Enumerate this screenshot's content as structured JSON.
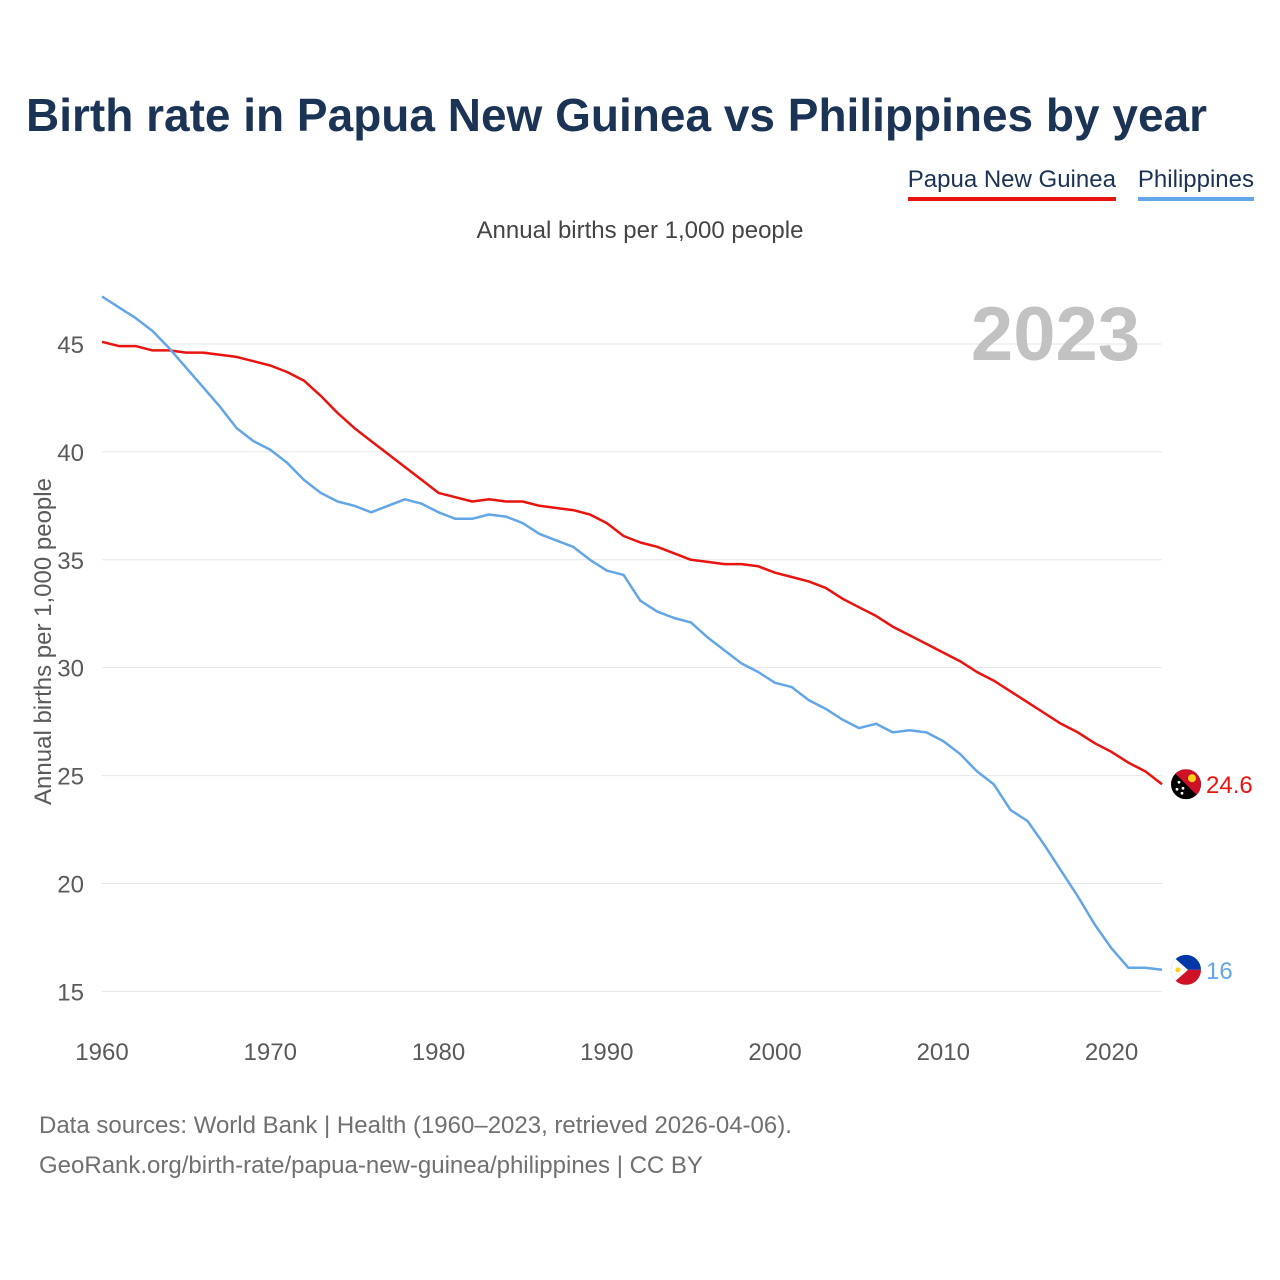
{
  "chart_data": {
    "type": "line",
    "title": "Birth rate in Papua New Guinea vs Philippines by year",
    "subtitle": "Annual births per 1,000 people",
    "ylabel": "Annual births per 1,000 people",
    "xlabel": "",
    "year_label": "2023",
    "xlim": [
      1960,
      2023
    ],
    "ylim": [
      14,
      47.5
    ],
    "x_ticks": [
      1960,
      1970,
      1980,
      1990,
      2000,
      2010,
      2020
    ],
    "y_ticks": [
      15,
      20,
      25,
      30,
      35,
      40,
      45
    ],
    "grid": true,
    "legend_position": "top-right",
    "x": [
      1960,
      1961,
      1962,
      1963,
      1964,
      1965,
      1966,
      1967,
      1968,
      1969,
      1970,
      1971,
      1972,
      1973,
      1974,
      1975,
      1976,
      1977,
      1978,
      1979,
      1980,
      1981,
      1982,
      1983,
      1984,
      1985,
      1986,
      1987,
      1988,
      1989,
      1990,
      1991,
      1992,
      1993,
      1994,
      1995,
      1996,
      1997,
      1998,
      1999,
      2000,
      2001,
      2002,
      2003,
      2004,
      2005,
      2006,
      2007,
      2008,
      2009,
      2010,
      2011,
      2012,
      2013,
      2014,
      2015,
      2016,
      2017,
      2018,
      2019,
      2020,
      2021,
      2022,
      2023
    ],
    "series": [
      {
        "name": "Papua New Guinea",
        "color": "#e8140f",
        "end_label": "24.6",
        "values": [
          45.1,
          44.9,
          44.9,
          44.7,
          44.7,
          44.6,
          44.6,
          44.5,
          44.4,
          44.2,
          44.0,
          43.7,
          43.3,
          42.6,
          41.8,
          41.1,
          40.5,
          39.9,
          39.3,
          38.7,
          38.1,
          37.9,
          37.7,
          37.8,
          37.7,
          37.7,
          37.5,
          37.4,
          37.3,
          37.1,
          36.7,
          36.1,
          35.8,
          35.6,
          35.3,
          35.0,
          34.9,
          34.8,
          34.8,
          34.7,
          34.4,
          34.2,
          34.0,
          33.7,
          33.2,
          32.8,
          32.4,
          31.9,
          31.5,
          31.1,
          30.7,
          30.3,
          29.8,
          29.4,
          28.9,
          28.4,
          27.9,
          27.4,
          27.0,
          26.5,
          26.1,
          25.6,
          25.2,
          24.6
        ]
      },
      {
        "name": "Philippines",
        "color": "#63a6e6",
        "end_label": "16",
        "values": [
          47.2,
          46.7,
          46.2,
          45.6,
          44.8,
          43.9,
          43.0,
          42.1,
          41.1,
          40.5,
          40.1,
          39.5,
          38.7,
          38.1,
          37.7,
          37.5,
          37.2,
          37.5,
          37.8,
          37.6,
          37.2,
          36.9,
          36.9,
          37.1,
          37.0,
          36.7,
          36.2,
          35.9,
          35.6,
          35.0,
          34.5,
          34.3,
          33.1,
          32.6,
          32.3,
          32.1,
          31.4,
          30.8,
          30.2,
          29.8,
          29.3,
          29.1,
          28.5,
          28.1,
          27.6,
          27.2,
          27.4,
          27.0,
          27.1,
          27.0,
          26.6,
          26.0,
          25.2,
          24.6,
          23.4,
          22.9,
          21.8,
          20.6,
          19.4,
          18.1,
          17.0,
          16.1,
          16.1,
          16.0
        ]
      }
    ]
  },
  "footer": {
    "line1": "Data sources: World Bank | Health (1960–2023, retrieved 2026-04-06).",
    "line2": "GeoRank.org/birth-rate/papua-new-guinea/philippines | CC BY"
  }
}
